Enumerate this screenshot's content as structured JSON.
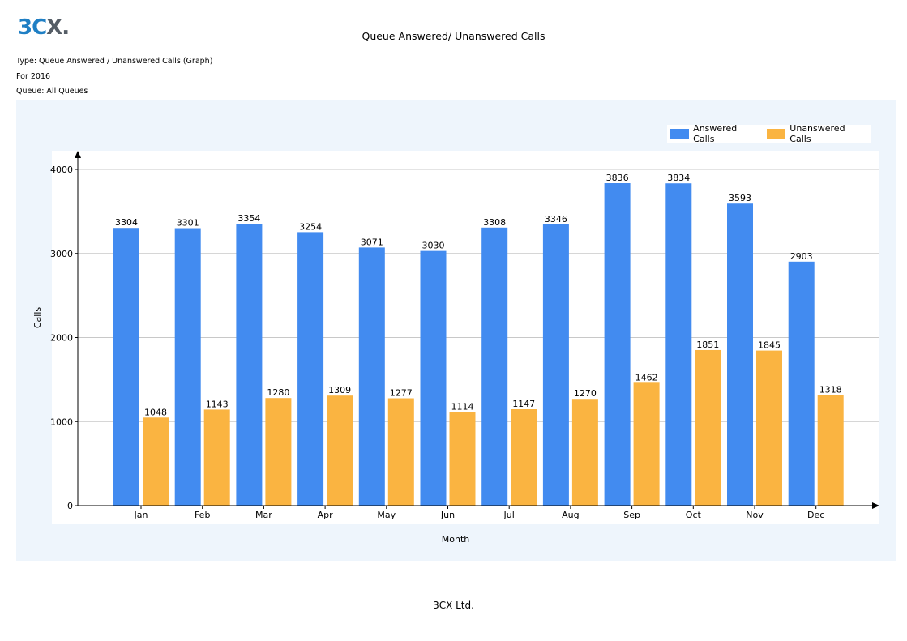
{
  "logo": {
    "text_num": "3C",
    "text_x": "X.",
    "accent": "#1f7fc4"
  },
  "report": {
    "title": "Queue Answered/ Unanswered Calls",
    "type_line": "Type: Queue Answered / Unanswered Calls (Graph)",
    "period_line": "For 2016",
    "queue_line": "Queue: All Queues"
  },
  "footer": {
    "company": "3CX Ltd."
  },
  "chart_data": {
    "type": "bar",
    "categories": [
      "Jan",
      "Feb",
      "Mar",
      "Apr",
      "May",
      "Jun",
      "Jul",
      "Aug",
      "Sep",
      "Oct",
      "Nov",
      "Dec"
    ],
    "series": [
      {
        "name": "Answered Calls",
        "color": "#428bf0",
        "values": [
          3304,
          3301,
          3354,
          3254,
          3071,
          3030,
          3308,
          3346,
          3836,
          3834,
          3593,
          2903
        ]
      },
      {
        "name": "Unanswered Calls",
        "color": "#fab441",
        "values": [
          1048,
          1143,
          1280,
          1309,
          1277,
          1114,
          1147,
          1270,
          1462,
          1851,
          1845,
          1318
        ]
      }
    ],
    "xlabel": "Month",
    "ylabel": "Calls",
    "ylim": [
      0,
      4000
    ],
    "yticks": [
      0,
      1000,
      2000,
      3000,
      4000
    ],
    "grid": true,
    "legend": "top-right",
    "data_labels": true
  }
}
